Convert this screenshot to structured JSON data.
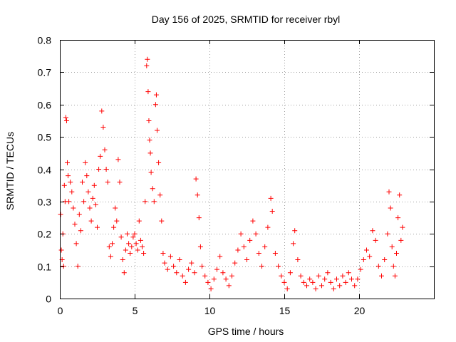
{
  "chart_data": {
    "type": "scatter",
    "title": "Day 156 of 2025, SRMTID for receiver rbyl",
    "xlabel": "GPS time / hours",
    "ylabel": "SRMTID / TECUs",
    "xlim": [
      0,
      25
    ],
    "ylim": [
      0,
      0.8
    ],
    "xticks": [
      0,
      5,
      10,
      15,
      20
    ],
    "xtick_labels": [
      "0",
      "5",
      "10",
      "15",
      "20"
    ],
    "yticks": [
      0,
      0.1,
      0.2,
      0.3,
      0.4,
      0.5,
      0.6,
      0.7,
      0.8
    ],
    "ytick_labels": [
      "0",
      "0.1",
      "0.2",
      "0.3",
      "0.4",
      "0.5",
      "0.6",
      "0.7",
      "0.8"
    ],
    "grid": true,
    "marker": "+",
    "color": "#ff0000",
    "series": [
      {
        "name": "rbyl",
        "points": [
          [
            0.05,
            0.26
          ],
          [
            0.1,
            0.15
          ],
          [
            0.15,
            0.12
          ],
          [
            0.2,
            0.2
          ],
          [
            0.25,
            0.1
          ],
          [
            0.3,
            0.35
          ],
          [
            0.35,
            0.3
          ],
          [
            0.4,
            0.56
          ],
          [
            0.45,
            0.55
          ],
          [
            0.5,
            0.42
          ],
          [
            0.55,
            0.38
          ],
          [
            0.6,
            0.3
          ],
          [
            0.7,
            0.36
          ],
          [
            0.8,
            0.33
          ],
          [
            0.9,
            0.28
          ],
          [
            1.0,
            0.23
          ],
          [
            1.1,
            0.17
          ],
          [
            1.2,
            0.1
          ],
          [
            1.3,
            0.26
          ],
          [
            1.4,
            0.21
          ],
          [
            1.5,
            0.36
          ],
          [
            1.6,
            0.3
          ],
          [
            1.7,
            0.42
          ],
          [
            1.8,
            0.38
          ],
          [
            1.9,
            0.33
          ],
          [
            2.0,
            0.28
          ],
          [
            2.1,
            0.24
          ],
          [
            2.2,
            0.31
          ],
          [
            2.3,
            0.35
          ],
          [
            2.4,
            0.29
          ],
          [
            2.5,
            0.22
          ],
          [
            2.6,
            0.4
          ],
          [
            2.7,
            0.44
          ],
          [
            2.8,
            0.58
          ],
          [
            2.9,
            0.53
          ],
          [
            3.0,
            0.46
          ],
          [
            3.1,
            0.4
          ],
          [
            3.2,
            0.36
          ],
          [
            3.3,
            0.16
          ],
          [
            3.4,
            0.13
          ],
          [
            3.5,
            0.17
          ],
          [
            3.6,
            0.22
          ],
          [
            3.7,
            0.28
          ],
          [
            3.8,
            0.24
          ],
          [
            3.9,
            0.43
          ],
          [
            4.0,
            0.36
          ],
          [
            4.1,
            0.19
          ],
          [
            4.2,
            0.12
          ],
          [
            4.3,
            0.08
          ],
          [
            4.4,
            0.15
          ],
          [
            4.5,
            0.2
          ],
          [
            4.6,
            0.17
          ],
          [
            4.7,
            0.14
          ],
          [
            4.8,
            0.16
          ],
          [
            4.9,
            0.19
          ],
          [
            5.0,
            0.2
          ],
          [
            5.1,
            0.17
          ],
          [
            5.2,
            0.15
          ],
          [
            5.3,
            0.24
          ],
          [
            5.4,
            0.18
          ],
          [
            5.5,
            0.16
          ],
          [
            5.6,
            0.14
          ],
          [
            5.7,
            0.3
          ],
          [
            5.8,
            0.72
          ],
          [
            5.85,
            0.74
          ],
          [
            5.9,
            0.64
          ],
          [
            5.95,
            0.55
          ],
          [
            6.0,
            0.49
          ],
          [
            6.05,
            0.45
          ],
          [
            6.1,
            0.39
          ],
          [
            6.2,
            0.34
          ],
          [
            6.3,
            0.3
          ],
          [
            6.4,
            0.6
          ],
          [
            6.45,
            0.63
          ],
          [
            6.5,
            0.52
          ],
          [
            6.6,
            0.42
          ],
          [
            6.7,
            0.32
          ],
          [
            6.8,
            0.24
          ],
          [
            6.9,
            0.14
          ],
          [
            7.0,
            0.11
          ],
          [
            7.2,
            0.09
          ],
          [
            7.4,
            0.13
          ],
          [
            7.6,
            0.1
          ],
          [
            7.8,
            0.08
          ],
          [
            8.0,
            0.12
          ],
          [
            8.2,
            0.07
          ],
          [
            8.4,
            0.05
          ],
          [
            8.6,
            0.09
          ],
          [
            8.8,
            0.11
          ],
          [
            9.0,
            0.08
          ],
          [
            9.1,
            0.37
          ],
          [
            9.2,
            0.32
          ],
          [
            9.3,
            0.25
          ],
          [
            9.4,
            0.16
          ],
          [
            9.5,
            0.1
          ],
          [
            9.7,
            0.07
          ],
          [
            9.9,
            0.05
          ],
          [
            10.1,
            0.03
          ],
          [
            10.3,
            0.06
          ],
          [
            10.5,
            0.09
          ],
          [
            10.7,
            0.13
          ],
          [
            10.9,
            0.08
          ],
          [
            11.1,
            0.06
          ],
          [
            11.3,
            0.04
          ],
          [
            11.5,
            0.07
          ],
          [
            11.7,
            0.11
          ],
          [
            11.9,
            0.15
          ],
          [
            12.1,
            0.2
          ],
          [
            12.3,
            0.16
          ],
          [
            12.5,
            0.12
          ],
          [
            12.7,
            0.18
          ],
          [
            12.9,
            0.24
          ],
          [
            13.1,
            0.2
          ],
          [
            13.3,
            0.14
          ],
          [
            13.5,
            0.1
          ],
          [
            13.7,
            0.16
          ],
          [
            13.9,
            0.22
          ],
          [
            14.1,
            0.31
          ],
          [
            14.2,
            0.27
          ],
          [
            14.4,
            0.14
          ],
          [
            14.6,
            0.1
          ],
          [
            14.8,
            0.07
          ],
          [
            15.0,
            0.05
          ],
          [
            15.2,
            0.03
          ],
          [
            15.4,
            0.08
          ],
          [
            15.6,
            0.17
          ],
          [
            15.7,
            0.21
          ],
          [
            15.9,
            0.12
          ],
          [
            16.1,
            0.07
          ],
          [
            16.3,
            0.05
          ],
          [
            16.5,
            0.04
          ],
          [
            16.7,
            0.06
          ],
          [
            16.9,
            0.05
          ],
          [
            17.1,
            0.03
          ],
          [
            17.3,
            0.07
          ],
          [
            17.5,
            0.04
          ],
          [
            17.7,
            0.06
          ],
          [
            17.9,
            0.08
          ],
          [
            18.1,
            0.05
          ],
          [
            18.3,
            0.03
          ],
          [
            18.5,
            0.06
          ],
          [
            18.7,
            0.04
          ],
          [
            18.9,
            0.07
          ],
          [
            19.1,
            0.05
          ],
          [
            19.3,
            0.08
          ],
          [
            19.5,
            0.06
          ],
          [
            19.7,
            0.04
          ],
          [
            19.9,
            0.06
          ],
          [
            20.1,
            0.09
          ],
          [
            20.3,
            0.12
          ],
          [
            20.5,
            0.15
          ],
          [
            20.7,
            0.13
          ],
          [
            20.9,
            0.21
          ],
          [
            21.1,
            0.18
          ],
          [
            21.3,
            0.1
          ],
          [
            21.5,
            0.07
          ],
          [
            21.7,
            0.12
          ],
          [
            21.9,
            0.2
          ],
          [
            22.0,
            0.33
          ],
          [
            22.1,
            0.28
          ],
          [
            22.2,
            0.16
          ],
          [
            22.3,
            0.1
          ],
          [
            22.4,
            0.07
          ],
          [
            22.5,
            0.14
          ],
          [
            22.6,
            0.25
          ],
          [
            22.7,
            0.32
          ],
          [
            22.8,
            0.18
          ],
          [
            22.9,
            0.22
          ]
        ]
      }
    ]
  }
}
